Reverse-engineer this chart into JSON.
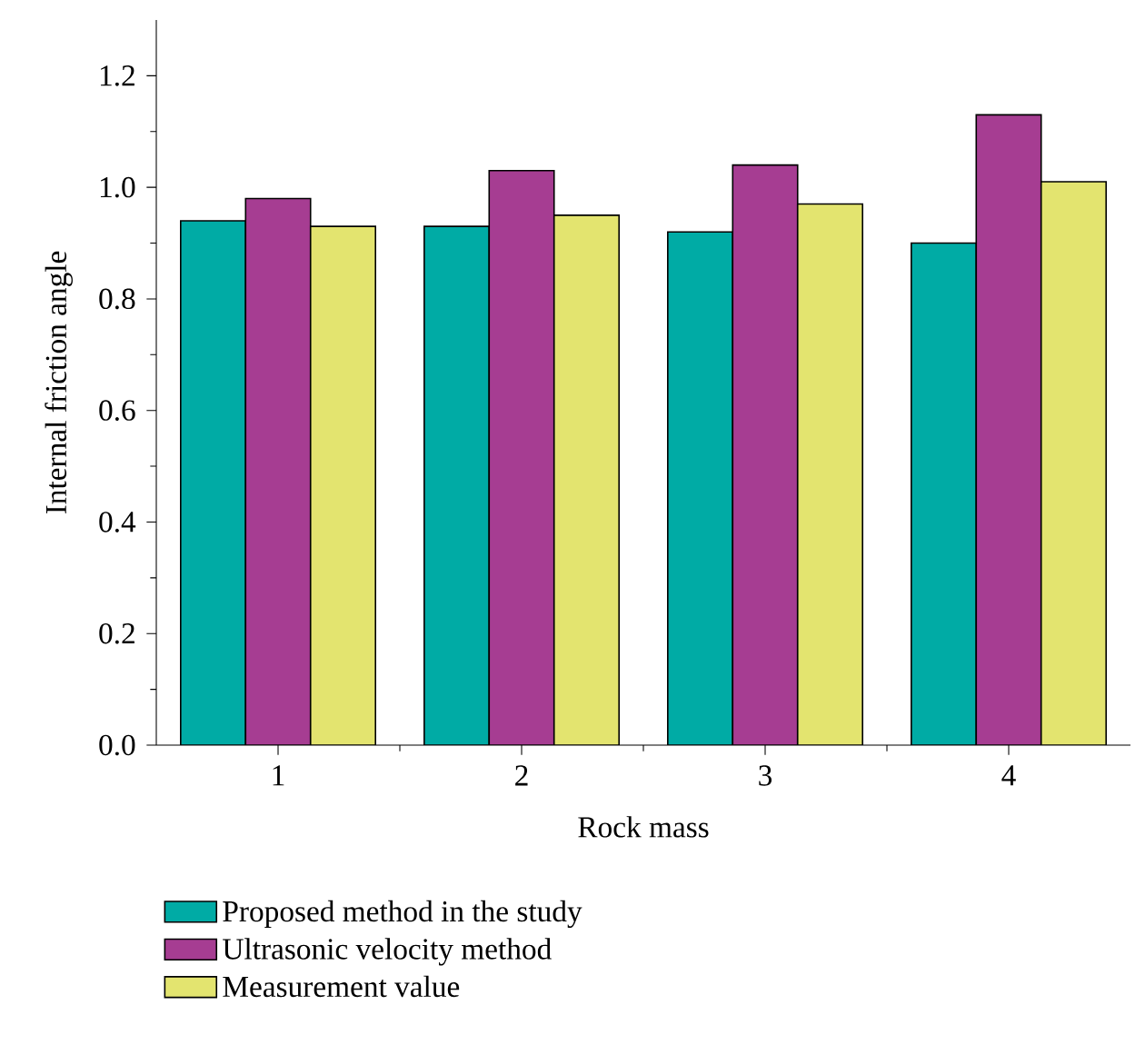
{
  "chart_data": {
    "type": "bar",
    "xlabel": "Rock mass",
    "ylabel": "Internal friction angle",
    "categories": [
      "1",
      "2",
      "3",
      "4"
    ],
    "series": [
      {
        "name": "Proposed method in the study",
        "color": "#00aba5",
        "values": [
          0.94,
          0.93,
          0.92,
          0.9
        ]
      },
      {
        "name": "Ultrasonic velocity method",
        "color": "#a63d92",
        "values": [
          0.98,
          1.03,
          1.04,
          1.13
        ]
      },
      {
        "name": "Measurement value",
        "color": "#e3e46f",
        "values": [
          0.93,
          0.95,
          0.97,
          1.01
        ]
      }
    ],
    "ylim": [
      0,
      1.3
    ],
    "yticks": [
      {
        "value": 0,
        "label": "0.0"
      },
      0.2,
      0.4,
      0.6,
      0.8,
      {
        "value": 1,
        "label": "1.0"
      },
      1.2
    ],
    "legend": "bottom",
    "grid": false
  }
}
